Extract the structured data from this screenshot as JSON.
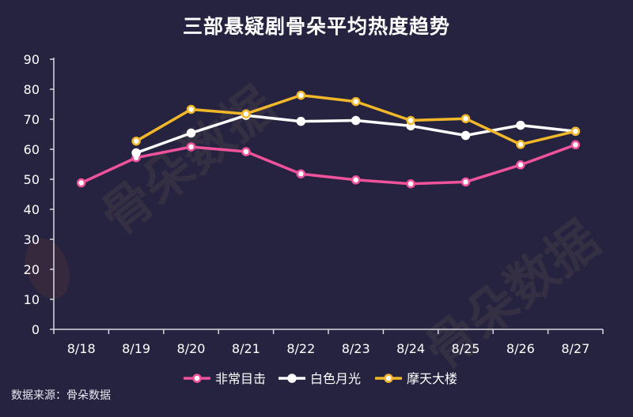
{
  "title": "三部悬疑剧骨朵平均热度趋势",
  "source": "数据来源：骨朵数据",
  "watermark": "骨朵数据",
  "colors": {
    "background": "#252340",
    "axis": "#d8d8e0",
    "tick_text": "#ffffff"
  },
  "chart_data": {
    "type": "line",
    "title": "三部悬疑剧骨朵平均热度趋势",
    "xlabel": "",
    "ylabel": "",
    "ylim": [
      0,
      90
    ],
    "yticks": [
      0,
      10,
      20,
      30,
      40,
      50,
      60,
      70,
      80,
      90
    ],
    "categories": [
      "8/18",
      "8/19",
      "8/20",
      "8/21",
      "8/22",
      "8/23",
      "8/24",
      "8/25",
      "8/26",
      "8/27"
    ],
    "grid": false,
    "legend_position": "bottom",
    "series": [
      {
        "name": "非常目击",
        "color": "#f0529c",
        "values": [
          48.8,
          57.2,
          60.8,
          59.2,
          51.8,
          49.8,
          48.5,
          49.1,
          54.8,
          61.5
        ]
      },
      {
        "name": "白色月光",
        "color": "#ffffff",
        "values": [
          null,
          58.8,
          65.4,
          71.3,
          69.3,
          69.6,
          67.8,
          64.6,
          68.0,
          66.0
        ]
      },
      {
        "name": "摩天大楼",
        "color": "#f2b82a",
        "values": [
          null,
          62.7,
          73.3,
          71.8,
          78.0,
          75.9,
          69.6,
          70.2,
          61.6,
          66.0
        ]
      }
    ]
  }
}
